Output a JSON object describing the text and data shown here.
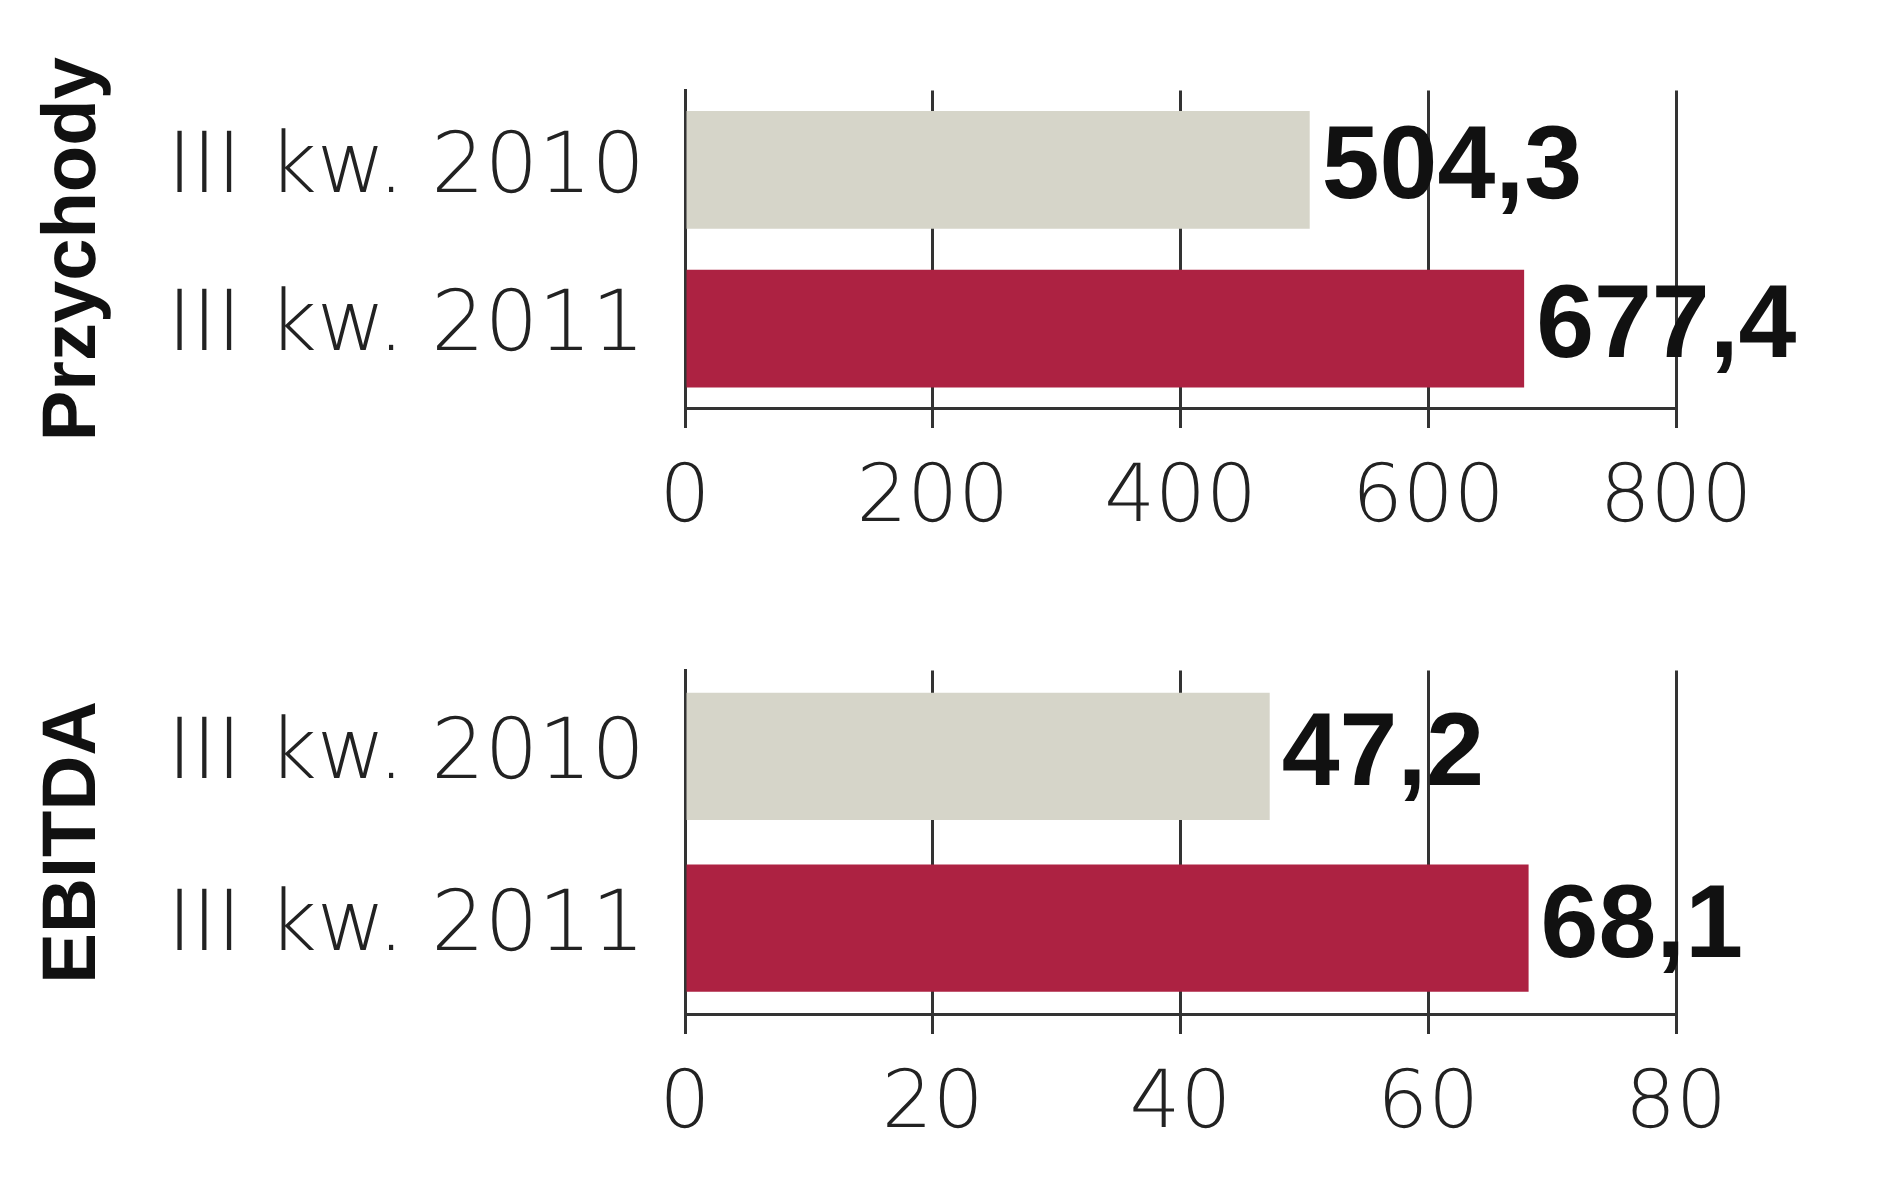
{
  "chart_data": [
    {
      "type": "bar",
      "orientation": "horizontal",
      "ylabel": "Przychody",
      "categories": [
        "III kw. 2010",
        "III kw. 2011"
      ],
      "values": [
        504.3,
        677.4
      ],
      "colors": [
        "#d6d5c9",
        "#ad2242"
      ],
      "value_labels": [
        "504,3",
        "677,4"
      ],
      "xlim": [
        0,
        800
      ],
      "xticks": [
        0,
        200,
        400,
        600,
        800
      ],
      "grid": "x",
      "legend": false
    },
    {
      "type": "bar",
      "orientation": "horizontal",
      "ylabel": "EBITDA",
      "categories": [
        "III kw. 2010",
        "III kw. 2011"
      ],
      "values": [
        47.2,
        68.1
      ],
      "colors": [
        "#d6d5c9",
        "#ad2242"
      ],
      "value_labels": [
        "47,2",
        "68,1"
      ],
      "xlim": [
        0,
        80
      ],
      "xticks": [
        0,
        20,
        40,
        60,
        80
      ],
      "grid": "x",
      "legend": false
    }
  ]
}
